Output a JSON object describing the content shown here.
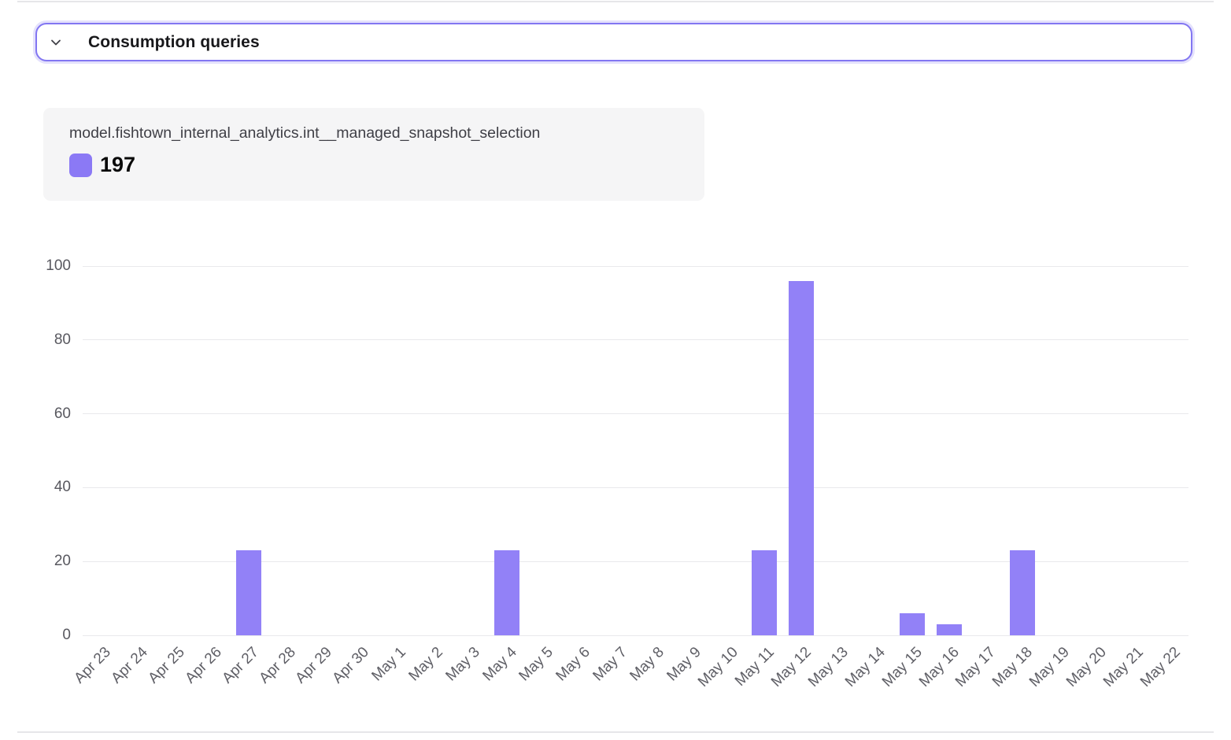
{
  "header": {
    "title": "Consumption queries"
  },
  "tooltip": {
    "series_name": "model.fishtown_internal_analytics.int__managed_snapshot_selection",
    "value": "197"
  },
  "colors": {
    "accent_border": "#8276f2",
    "bar": "#9281f7",
    "legend_swatch": "#8b79f5",
    "grid_line": "#e9e9ec",
    "axis_text": "#5f5f66",
    "divider": "#e6e6e9",
    "tooltip_bg": "#f5f5f6"
  },
  "chart_data": {
    "type": "bar",
    "title": "Consumption queries",
    "series_name": "model.fishtown_internal_analytics.int__managed_snapshot_selection",
    "total": 197,
    "categories": [
      "Apr 23",
      "Apr 24",
      "Apr 25",
      "Apr 26",
      "Apr 27",
      "Apr 28",
      "Apr 29",
      "Apr 30",
      "May 1",
      "May 2",
      "May 3",
      "May 4",
      "May 5",
      "May 6",
      "May 7",
      "May 8",
      "May 9",
      "May 10",
      "May 11",
      "May 12",
      "May 13",
      "May 14",
      "May 15",
      "May 16",
      "May 17",
      "May 18",
      "May 19",
      "May 20",
      "May 21",
      "May 22"
    ],
    "values": [
      0,
      0,
      0,
      0,
      23,
      0,
      0,
      0,
      0,
      0,
      0,
      23,
      0,
      0,
      0,
      0,
      0,
      0,
      23,
      96,
      0,
      0,
      6,
      3,
      0,
      23,
      0,
      0,
      0,
      0
    ],
    "xlabel": "",
    "ylabel": "",
    "ylim": [
      0,
      100
    ],
    "y_ticks": [
      0,
      20,
      40,
      60,
      80,
      100
    ],
    "grid": true,
    "bar_color": "#9281f7",
    "legend_position": "top-left"
  }
}
